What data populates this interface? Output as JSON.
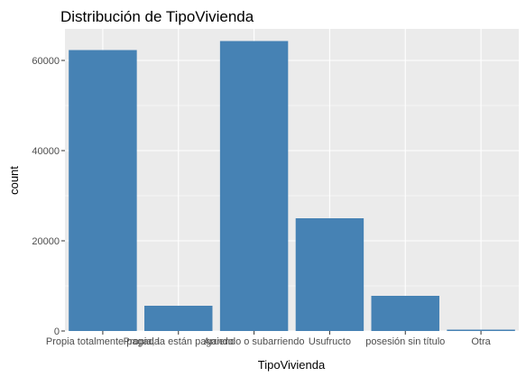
{
  "chart_data": {
    "type": "bar",
    "title": "Distribución de TipoVivienda",
    "xlabel": "TipoVivienda",
    "ylabel": "count",
    "categories": [
      "Propia totalmente pagada",
      "Propia, la están pagando",
      "Arriendo o subarriendo",
      "Usufructo",
      "posesión sin título",
      "Otra"
    ],
    "values": [
      62300,
      5600,
      64300,
      25000,
      7800,
      300
    ],
    "ylim": [
      0,
      67000
    ],
    "yticks": [
      0,
      20000,
      40000,
      60000
    ],
    "grid": true,
    "colors": {
      "bar": "#4682b4",
      "panel": "#ebebeb",
      "grid_major": "#ffffff",
      "tick_text": "#4d4d4d",
      "tick_mark": "#333333"
    }
  }
}
